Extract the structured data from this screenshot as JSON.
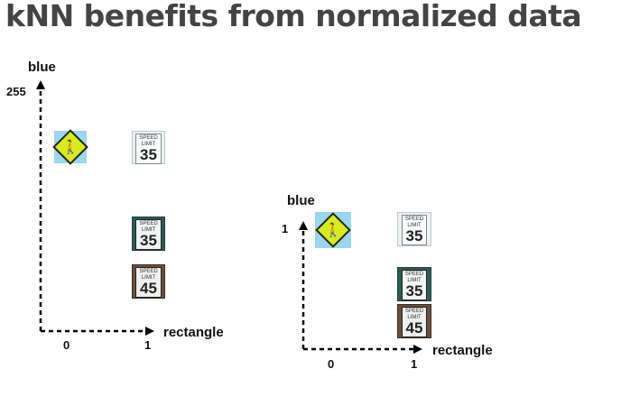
{
  "title": "kNN benefits from normalized data",
  "diagrams": [
    {
      "y_axis_label": "blue",
      "y_tick_label": "255",
      "x_axis_label": "rectangle",
      "x_tick_labels": [
        "0",
        "1"
      ]
    },
    {
      "y_axis_label": "blue",
      "y_tick_label": "1",
      "x_axis_label": "rectangle",
      "x_tick_labels": [
        "0",
        "1"
      ]
    }
  ],
  "signs": {
    "pedestrian": {
      "icon": "pedestrian-crossing"
    },
    "speed35": {
      "line1": "SPEED",
      "line2": "LIMIT",
      "value": "35"
    },
    "speed45": {
      "line1": "SPEED",
      "line2": "LIMIT",
      "value": "45"
    }
  },
  "colors": {
    "title": "#444444",
    "pedestrian_bg": "#9ad7ec",
    "pedestrian_sign": "#d7ec1a"
  }
}
